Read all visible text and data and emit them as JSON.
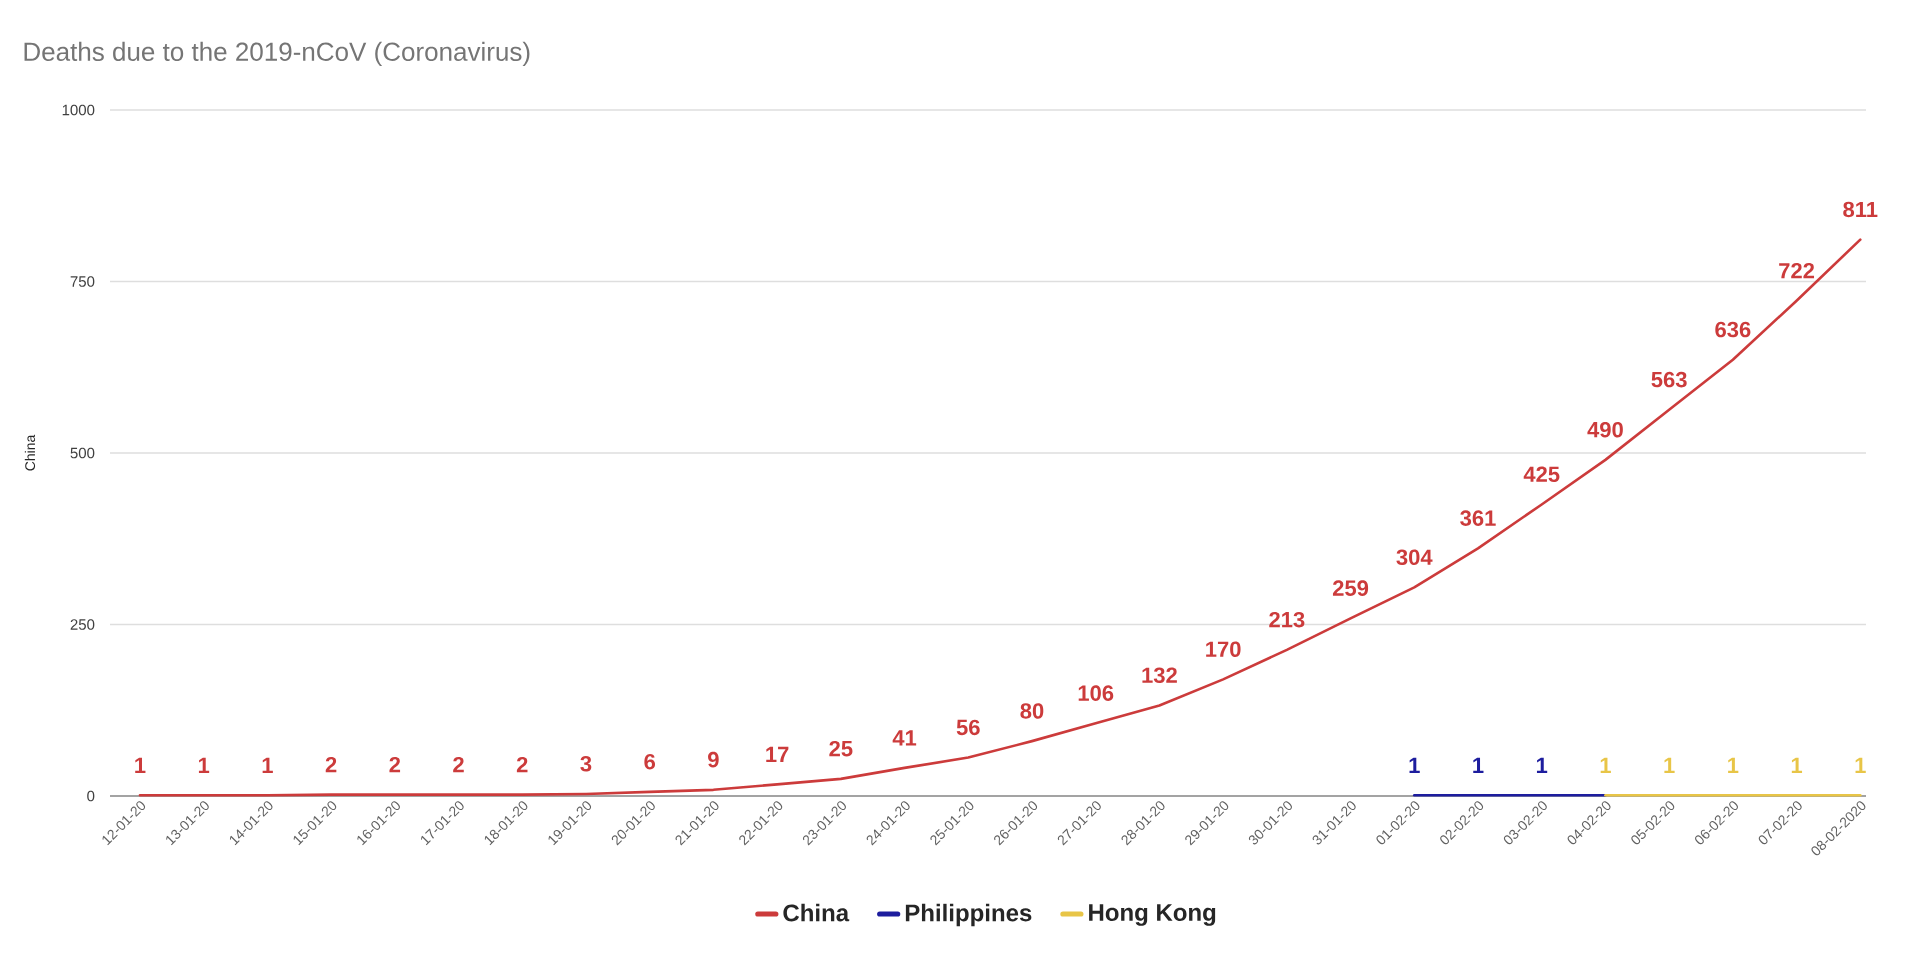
{
  "chart_data": {
    "type": "line",
    "title": "Deaths due to the 2019-nCoV (Coronavirus)",
    "ylabel": "China",
    "categories": [
      "12-01-20",
      "13-01-20",
      "14-01-20",
      "15-01-20",
      "16-01-20",
      "17-01-20",
      "18-01-20",
      "19-01-20",
      "20-01-20",
      "21-01-20",
      "22-01-20",
      "23-01-20",
      "24-01-20",
      "25-01-20",
      "26-01-20",
      "27-01-20",
      "28-01-20",
      "29-01-20",
      "30-01-20",
      "31-01-20",
      "01-02-20",
      "02-02-20",
      "03-02-20",
      "04-02-20",
      "05-02-20",
      "06-02-20",
      "07-02-20",
      "08-02-2020"
    ],
    "series": [
      {
        "name": "China",
        "color": "#cc3b3b",
        "values": [
          1,
          1,
          1,
          2,
          2,
          2,
          2,
          3,
          6,
          9,
          17,
          25,
          41,
          56,
          80,
          106,
          132,
          170,
          213,
          259,
          304,
          361,
          425,
          490,
          563,
          636,
          722,
          811
        ]
      },
      {
        "name": "Philippines",
        "color": "#1d1d9e",
        "values": [
          null,
          null,
          null,
          null,
          null,
          null,
          null,
          null,
          null,
          null,
          null,
          null,
          null,
          null,
          null,
          null,
          null,
          null,
          null,
          null,
          1,
          1,
          1,
          1,
          null,
          null,
          null,
          null
        ],
        "value_labels": [
          null,
          null,
          null,
          null,
          null,
          null,
          null,
          null,
          null,
          null,
          null,
          null,
          null,
          null,
          null,
          null,
          null,
          null,
          null,
          null,
          "1",
          "1",
          "1",
          null,
          null,
          null,
          null,
          null
        ]
      },
      {
        "name": "Hong Kong",
        "color": "#e8c547",
        "values": [
          null,
          null,
          null,
          null,
          null,
          null,
          null,
          null,
          null,
          null,
          null,
          null,
          null,
          null,
          null,
          null,
          null,
          null,
          null,
          null,
          null,
          null,
          null,
          1,
          1,
          1,
          1,
          1
        ]
      }
    ],
    "ylim": [
      0,
      1000
    ],
    "yticks": [
      0,
      250,
      500,
      750,
      1000
    ],
    "grid": "y",
    "legend": "bottom",
    "data_labels": true,
    "line_style": "solid",
    "marker": "none"
  }
}
